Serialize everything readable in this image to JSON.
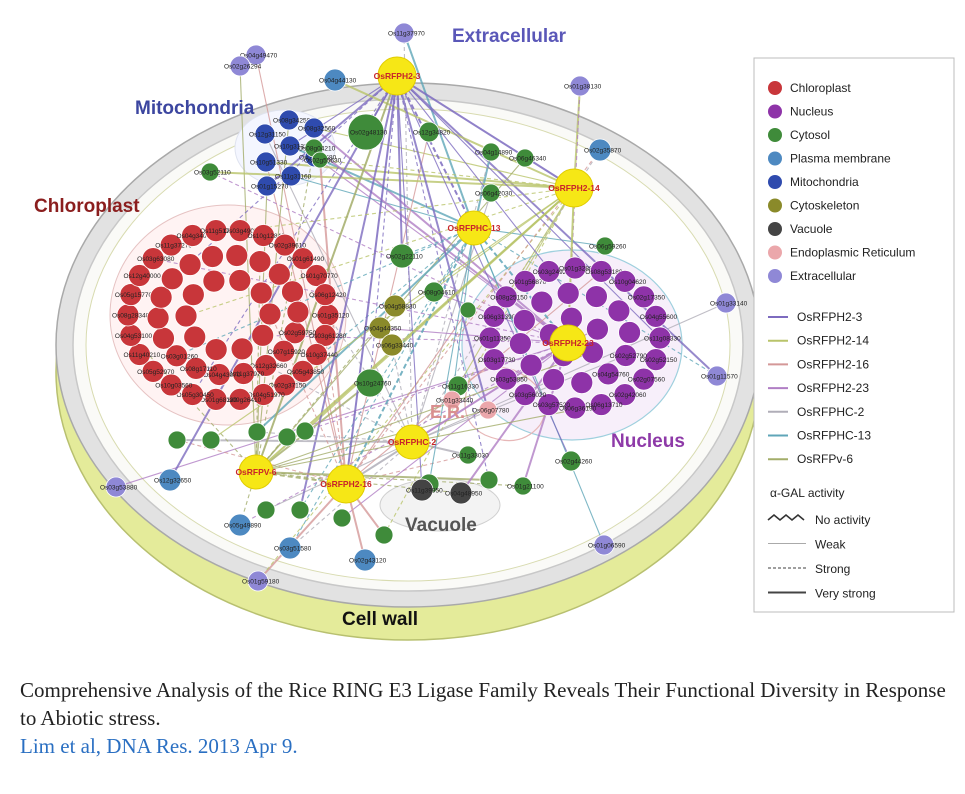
{
  "regions": {
    "extracellular": {
      "label": "Extracellular",
      "color": "#5a57b8"
    },
    "mitochondria": {
      "label": "Mitochondria",
      "color": "#3c46a0"
    },
    "chloroplast": {
      "label": "Chloroplast",
      "color": "#8b1e1e"
    },
    "nucleus": {
      "label": "Nucleus",
      "color": "#8e3aa8"
    },
    "er": {
      "label": "E.R.",
      "color": "#d98f8f"
    },
    "vacuole": {
      "label": "Vacuole",
      "color": "#555555"
    },
    "cell_wall": {
      "label": "Cell wall",
      "color": "#111111"
    }
  },
  "hubs": [
    {
      "id": "h1",
      "label": "OsRFPH2-3"
    },
    {
      "id": "h2",
      "label": "OsRFPH2-14"
    },
    {
      "id": "h3",
      "label": "OsRFPHC-13"
    },
    {
      "id": "h4",
      "label": "OsRFPH2-23"
    },
    {
      "id": "h5",
      "label": "OsRFPHC-2"
    },
    {
      "id": "h6",
      "label": "OsRFPV-6"
    },
    {
      "id": "h7",
      "label": "OsRFPH2-16"
    }
  ],
  "node_labels": {
    "extracellular": [
      "Os04g49470",
      "Os11g37970",
      "Os02g26294",
      "Os01g38130",
      "Os01g33140",
      "Os01g11570",
      "Os03g53880",
      "Os01g59180",
      "Os01g06590"
    ],
    "mitochondria": [
      "Os08g34250",
      "Os08g32560",
      "Os12g31150",
      "Os10g31330",
      "Os01g20680",
      "Os10g51330",
      "Os11g31160",
      "Os01g15270"
    ],
    "cytosol": [
      "Os02g48130",
      "Os08g04210",
      "Os12g34820",
      "Os04g14890",
      "Os06g46340",
      "Os03g52110",
      "Os06g42030",
      "Os02g22110",
      "Os08g04610",
      "Os02g55630",
      "Os06g59260",
      "Os10g24760",
      "Os11g16330",
      "Os11g33030",
      "Os02g44260",
      "Os01g21100"
    ],
    "plasma_membrane": [
      "Os04g44130",
      "Os02g35870",
      "Os12g32650",
      "Os05g49890",
      "Os02g43120",
      "Os03g51580"
    ],
    "chloroplast": [
      "Os01g35120",
      "Os03g61280",
      "Os10g37440",
      "Os05g43850",
      "Os02g37150",
      "Os04g51970",
      "Os09g26410",
      "Os01g68130",
      "Os05g30450",
      "Os10g03560",
      "Os05g52970",
      "Os11g40210",
      "Os04g53100",
      "Os08g28340",
      "Os05g15770",
      "Os12g40000",
      "Os03g63080",
      "Os11g37270",
      "Os04g34070",
      "Os11g51780",
      "Os03g49040",
      "Os10g12840",
      "Os02g39610",
      "Os01g61490",
      "Os01g70770",
      "Os06g12420",
      "Os02g59750",
      "Os07g15920",
      "Os12g32660",
      "Os11g37970",
      "Os04g43070",
      "Os08g17110",
      "Os03g01260"
    ],
    "nucleus": [
      "Os11g08330",
      "Os02g52150",
      "Os02g07560",
      "Os02g42060",
      "Os06g13710",
      "Os06g36190",
      "Os03g57520",
      "Os03g56020",
      "Os03g53850",
      "Os03g17730",
      "Os01g11350",
      "Os06g31390",
      "Os08g25150",
      "Os01g56870",
      "Os03g24920",
      "Os01g32880",
      "Os08g53180",
      "Os10g04620",
      "Os02g17350",
      "Os04g55600",
      "Os02g52790",
      "Os04g54760"
    ],
    "cytoskeleton": [
      "Os04g58830",
      "Os04g44350",
      "Os06g33440"
    ],
    "vacuole": [
      "Os11g39950",
      "Os04g48950"
    ],
    "er": [
      "Os01g33440",
      "Os06g07780"
    ]
  },
  "legend": {
    "compartments": [
      {
        "label": "Chloroplast",
        "color": "#c8363a"
      },
      {
        "label": "Nucleus",
        "color": "#8e33a8"
      },
      {
        "label": "Cytosol",
        "color": "#3f8b3a"
      },
      {
        "label": "Plasma membrane",
        "color": "#4d89c1"
      },
      {
        "label": "Mitochondria",
        "color": "#2f4bae"
      },
      {
        "label": "Cytoskeleton",
        "color": "#8a8a2a"
      },
      {
        "label": "Vacuole",
        "color": "#444444"
      },
      {
        "label": "Endoplasmic Reticulum",
        "color": "#eba7ab"
      },
      {
        "label": "Extracellular",
        "color": "#8f88d6"
      }
    ],
    "proteins": [
      {
        "label": "OsRFPH2-3",
        "color": "#7d6bbf"
      },
      {
        "label": "OsRFPH2-14",
        "color": "#b9c46a"
      },
      {
        "label": "OsRFPH2-16",
        "color": "#d49898"
      },
      {
        "label": "OsRFPH2-23",
        "color": "#b07ec4"
      },
      {
        "label": "OsRFPHC-2",
        "color": "#b0aeb8"
      },
      {
        "label": "OsRFPHC-13",
        "color": "#5fa6b8"
      },
      {
        "label": "OsRFPv-6",
        "color": "#a3ad6a"
      }
    ],
    "activity_title": "α-GAL activity",
    "activity": [
      {
        "label": "No activity",
        "style": "zigzag"
      },
      {
        "label": "Weak",
        "style": "thin"
      },
      {
        "label": "Strong",
        "style": "dashed"
      },
      {
        "label": "Very strong",
        "style": "thick"
      }
    ]
  },
  "caption": {
    "title": "Comprehensive Analysis of the Rice RING E3 Ligase Family Reveals Their Functional Diversity in Response to Abiotic stress.",
    "citation": "Lim et al, DNA Res. 2013 Apr 9."
  }
}
